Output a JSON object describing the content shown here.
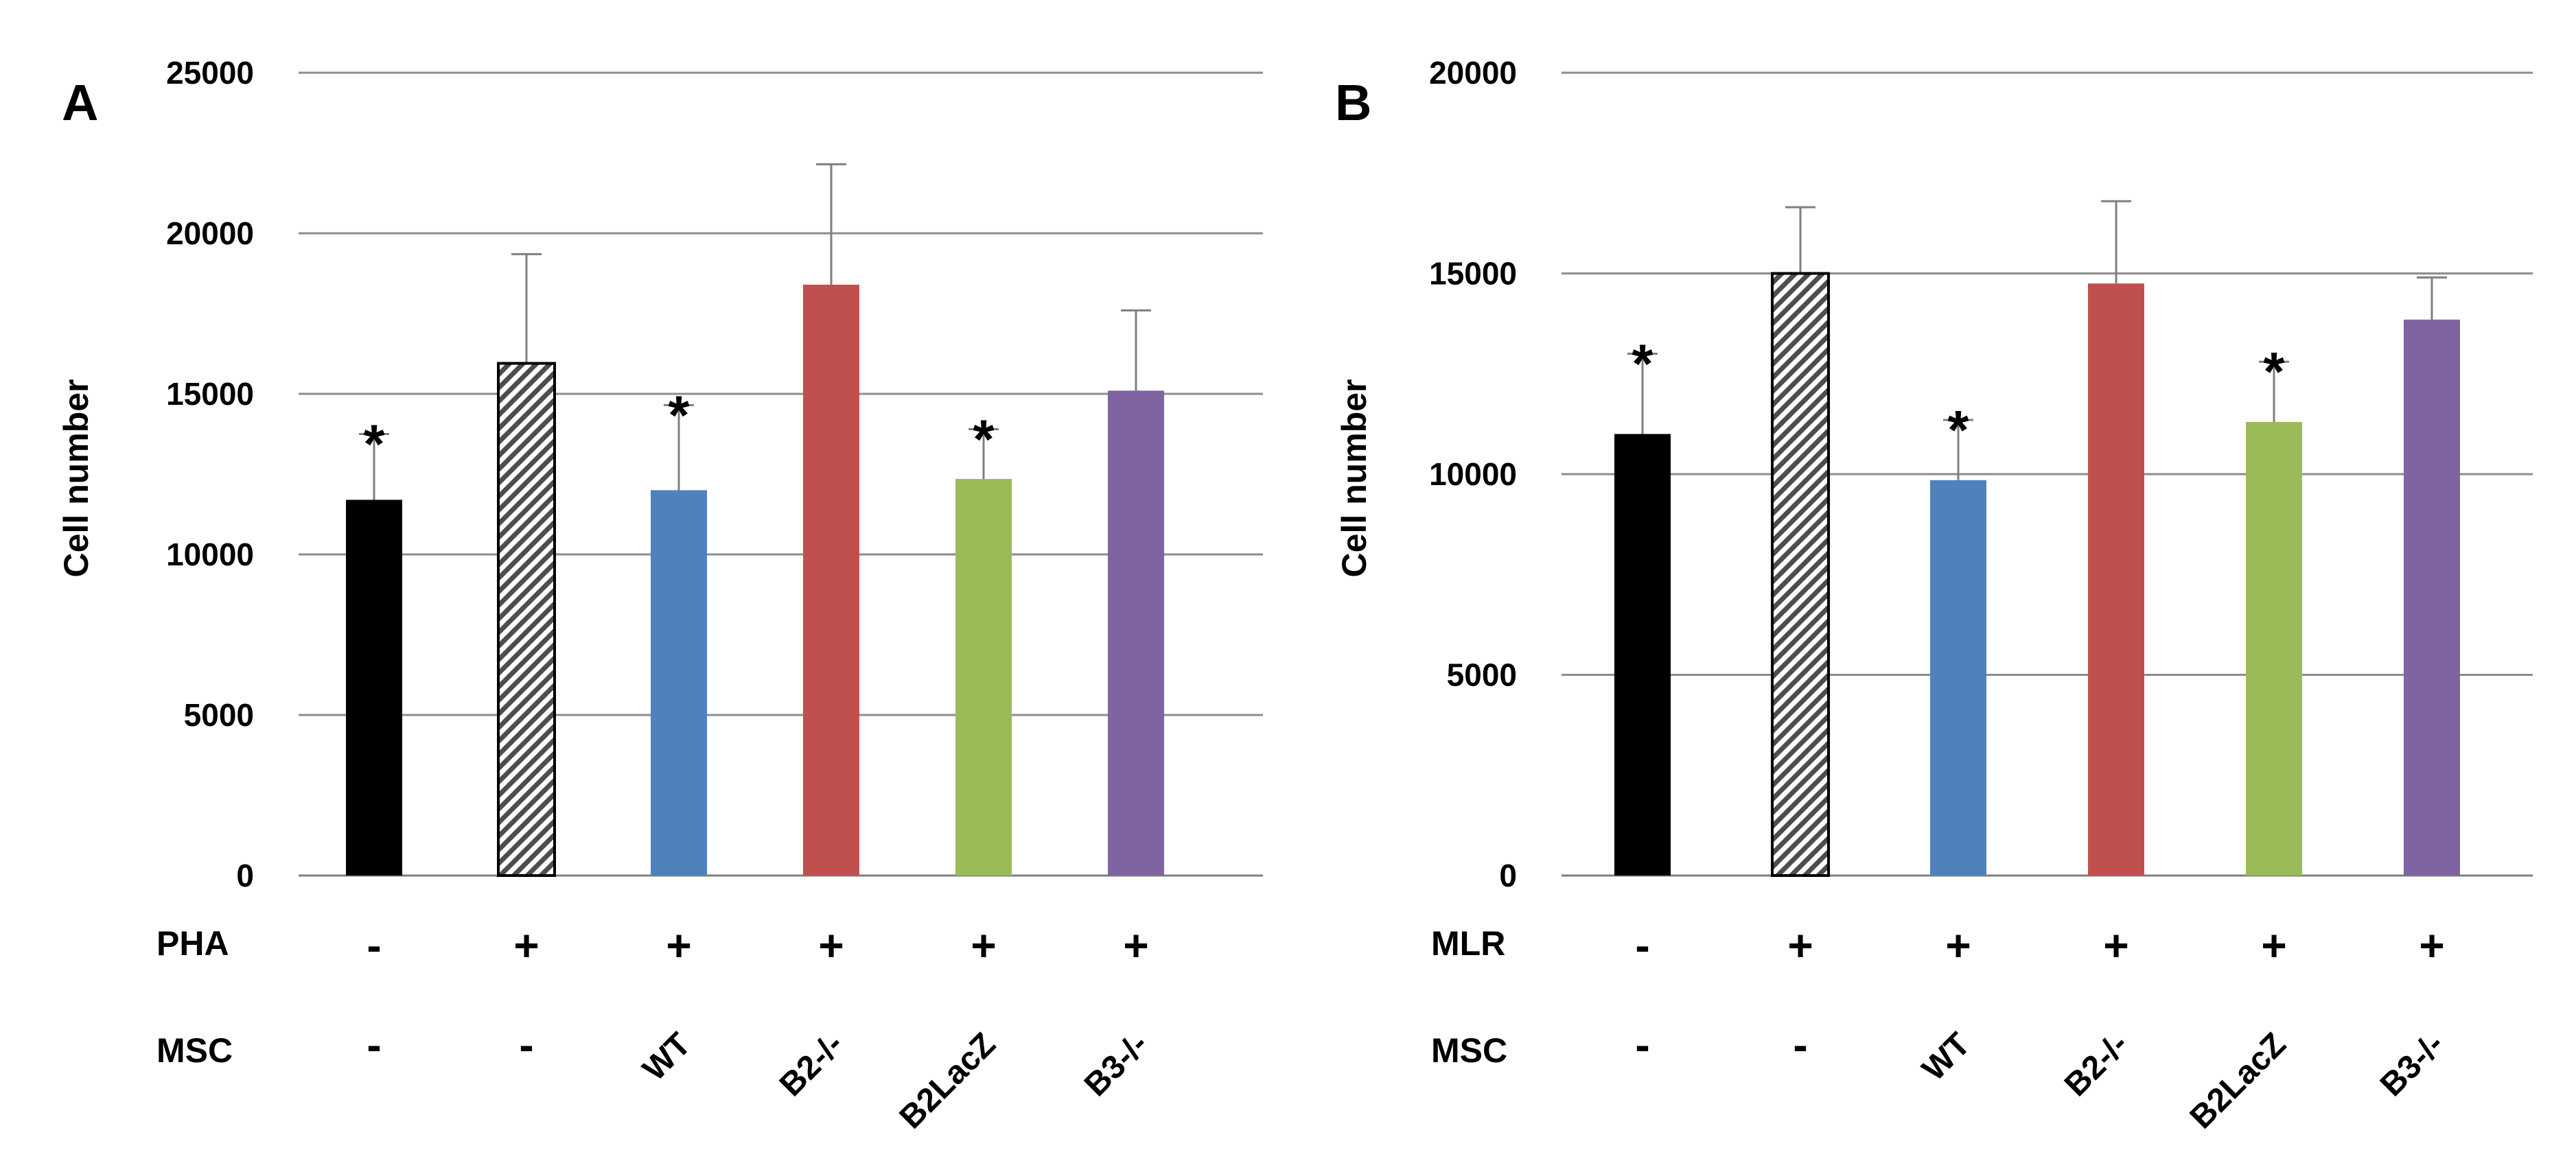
{
  "colors": {
    "control": "#000000",
    "stimulated": "#d9d9d9",
    "wt": "#4f81bd",
    "b2ko": "#c0504d",
    "b2lacz": "#9bbb59",
    "b3ko": "#8064a2",
    "grid": "#8c8c8c",
    "errorbar": "#7f7f7f"
  },
  "chart_data": [
    {
      "panel": "A",
      "type": "bar",
      "ylabel": "Cell number",
      "ylim": [
        0,
        25000
      ],
      "yticks": [
        "0",
        "5000",
        "10000",
        "15000",
        "20000",
        "25000"
      ],
      "grid": true,
      "row_labels": {
        "stimulus": "PHA",
        "msc": "MSC"
      },
      "categories": [
        {
          "stimulus": "-",
          "msc": "-"
        },
        {
          "stimulus": "+",
          "msc": "-"
        },
        {
          "stimulus": "+",
          "msc": "WT"
        },
        {
          "stimulus": "+",
          "msc": "B2-/-"
        },
        {
          "stimulus": "+",
          "msc": "B2LacZ"
        },
        {
          "stimulus": "+",
          "msc": "B3-/-"
        }
      ],
      "values": [
        11700,
        15950,
        12000,
        18400,
        12350,
        15100
      ],
      "errors": [
        2050,
        3400,
        2650,
        3750,
        1550,
        2500
      ],
      "significance": [
        "*",
        "",
        "*",
        "",
        "*",
        ""
      ]
    },
    {
      "panel": "B",
      "type": "bar",
      "ylabel": "Cell number",
      "ylim": [
        0,
        20000
      ],
      "yticks": [
        "0",
        "5000",
        "10000",
        "15000",
        "20000"
      ],
      "grid": true,
      "row_labels": {
        "stimulus": "MLR",
        "msc": "MSC"
      },
      "categories": [
        {
          "stimulus": "-",
          "msc": "-"
        },
        {
          "stimulus": "+",
          "msc": "-"
        },
        {
          "stimulus": "+",
          "msc": "WT"
        },
        {
          "stimulus": "+",
          "msc": "B2-/-"
        },
        {
          "stimulus": "+",
          "msc": "B2LacZ"
        },
        {
          "stimulus": "+",
          "msc": "B3-/-"
        }
      ],
      "values": [
        11000,
        15000,
        9850,
        14750,
        11300,
        13850
      ],
      "errors": [
        2000,
        1650,
        1500,
        2050,
        1500,
        1050
      ],
      "significance": [
        "*",
        "",
        "*",
        "",
        "*",
        ""
      ]
    }
  ]
}
